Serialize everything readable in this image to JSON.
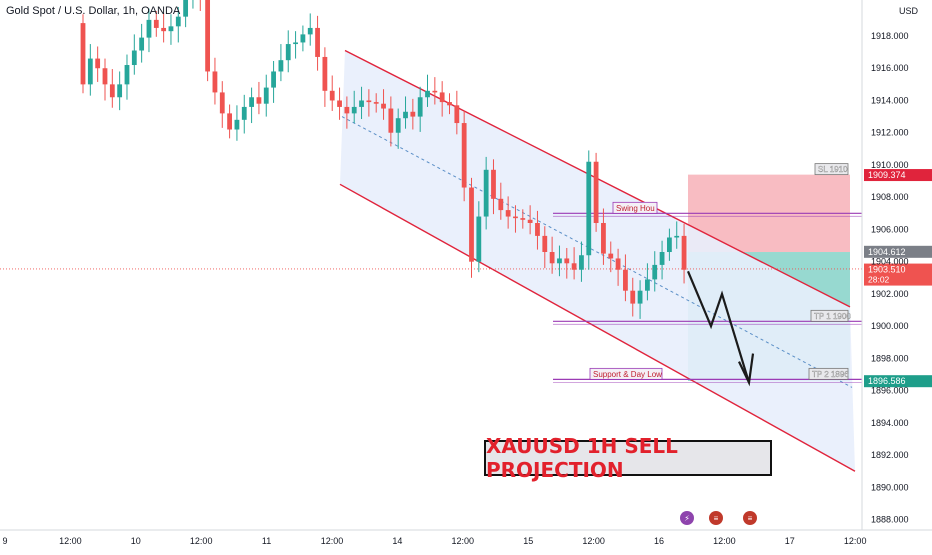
{
  "header": {
    "symbol_title": "Gold Spot / U.S. Dollar, 1h, OANDA",
    "currency_button": "USD"
  },
  "colors": {
    "bull": "#26a69a",
    "bear": "#ef5350",
    "channel": "#e0243c",
    "channel_fill": "#e8eefc",
    "stop_zone": "#f6a5ad",
    "target_zone": "#7dcfc4",
    "level_line": "#9b3bb5",
    "mid_line": "#5b8fc7",
    "arrow": "#1b1b1b"
  },
  "chart_data": {
    "type": "candlestick",
    "title": "XAUUSD 1H SELL PROJECTION",
    "ylim": [
      1887.4,
      1919.4
    ],
    "y_ticks": [
      "1918.000",
      "1916.000",
      "1914.000",
      "1912.000",
      "1910.000",
      "1908.000",
      "1906.000",
      "1904.000",
      "1902.000",
      "1900.000",
      "1898.000",
      "1896.000",
      "1894.000",
      "1892.000",
      "1890.000",
      "1888.000"
    ],
    "x_ticks": [
      "9",
      "12:00",
      "10",
      "12:00",
      "11",
      "12:00",
      "14",
      "12:00",
      "15",
      "12:00",
      "16",
      "12:00",
      "17",
      "12:00"
    ],
    "candles": {
      "open": [
        1918.8,
        1915.0,
        1916.6,
        1916.0,
        1915.0,
        1914.2,
        1915.0,
        1916.2,
        1917.1,
        1917.9,
        1919.0,
        1918.5,
        1918.3,
        1918.6,
        1919.2,
        1920.5,
        1921.2,
        1920.5,
        1915.8,
        1914.5,
        1913.2,
        1912.2,
        1912.8,
        1913.6,
        1914.2,
        1913.8,
        1914.8,
        1915.8,
        1916.5,
        1917.5,
        1917.6,
        1918.1,
        1918.5,
        1916.7,
        1914.6,
        1914.0,
        1913.6,
        1913.2,
        1913.6,
        1914.0,
        1913.9,
        1913.8,
        1913.5,
        1912.0,
        1912.9,
        1913.3,
        1913.0,
        1914.2,
        1914.6,
        1914.5,
        1913.9,
        1913.7,
        1912.6,
        1908.6,
        1904.0,
        1906.8,
        1909.7,
        1907.9,
        1907.2,
        1906.8,
        1906.7,
        1906.6,
        1906.4,
        1905.6,
        1904.6,
        1903.9,
        1904.2,
        1903.9,
        1903.5,
        1904.4,
        1910.2,
        1906.4,
        1904.5,
        1904.2,
        1903.5,
        1902.2,
        1901.4,
        1902.2,
        1902.9,
        1903.8,
        1904.6,
        1905.5,
        1905.6
      ],
      "close": [
        1915.0,
        1916.6,
        1916.0,
        1915.0,
        1914.2,
        1915.0,
        1916.2,
        1917.1,
        1917.9,
        1919.0,
        1918.5,
        1918.3,
        1918.6,
        1919.2,
        1920.5,
        1921.2,
        1920.5,
        1915.8,
        1914.5,
        1913.2,
        1912.2,
        1912.8,
        1913.6,
        1914.2,
        1913.8,
        1914.8,
        1915.8,
        1916.5,
        1917.5,
        1917.6,
        1918.1,
        1918.5,
        1916.7,
        1914.6,
        1914.0,
        1913.6,
        1913.2,
        1913.6,
        1914.0,
        1913.9,
        1913.8,
        1913.5,
        1912.0,
        1912.9,
        1913.3,
        1913.0,
        1914.2,
        1914.6,
        1914.5,
        1913.9,
        1913.7,
        1912.6,
        1908.6,
        1904.0,
        1906.8,
        1909.7,
        1907.9,
        1907.2,
        1906.8,
        1906.7,
        1906.6,
        1906.4,
        1905.6,
        1904.6,
        1903.9,
        1904.2,
        1903.9,
        1903.5,
        1904.4,
        1910.2,
        1906.4,
        1904.5,
        1904.2,
        1903.5,
        1902.2,
        1901.4,
        1902.2,
        1902.9,
        1903.8,
        1904.6,
        1905.5,
        1905.6,
        1903.5
      ]
    },
    "annotations": [
      {
        "type": "label",
        "text": "Swing Hou",
        "price": 1907.0
      },
      {
        "type": "label",
        "text": "Support & Day Low",
        "price": 1896.7
      },
      {
        "type": "label",
        "text": "SL 1910",
        "price": 1909.4
      },
      {
        "type": "label",
        "text": "TP 1 1900",
        "price": 1900.3
      },
      {
        "type": "label",
        "text": "TP 2 1896",
        "price": 1896.7
      }
    ],
    "price_labels": [
      {
        "text": "1909.374",
        "price": 1909.374,
        "color": "#e0243c"
      },
      {
        "text": "1904.612",
        "price": 1904.612,
        "color": "#7b7f87"
      },
      {
        "text": "1903.510",
        "price": 1903.51,
        "color": "#ef5350",
        "countdown": "28:02"
      },
      {
        "text": "1896.586",
        "price": 1896.586,
        "color": "#1e9e8a"
      }
    ]
  }
}
